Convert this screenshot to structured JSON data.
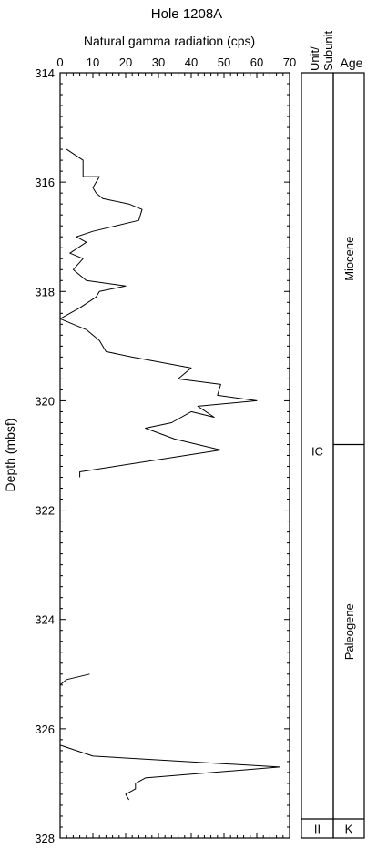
{
  "chart_data": {
    "type": "line",
    "title": "Hole 1208A",
    "xlabel": "Natural gamma radiation (cps)",
    "ylabel": "Depth (mbsf)",
    "xlim": [
      0,
      70
    ],
    "ylim": [
      314,
      328
    ],
    "y_inverted": true,
    "x_ticks": [
      "0",
      "10",
      "20",
      "30",
      "40",
      "50",
      "60",
      "70"
    ],
    "y_ticks": [
      "314",
      "316",
      "318",
      "320",
      "322",
      "324",
      "326",
      "328"
    ],
    "segments": [
      {
        "points": [
          [
            2,
            315.4
          ],
          [
            7,
            315.6
          ],
          [
            7,
            315.9
          ],
          [
            12,
            315.9
          ],
          [
            10,
            316.1
          ],
          [
            11,
            316.2
          ],
          [
            13,
            316.3
          ],
          [
            21,
            316.4
          ],
          [
            25,
            316.5
          ],
          [
            24,
            316.7
          ],
          [
            10,
            316.9
          ],
          [
            5,
            317.0
          ],
          [
            8,
            317.1
          ],
          [
            3,
            317.3
          ],
          [
            7,
            317.4
          ],
          [
            4,
            317.6
          ],
          [
            8,
            317.8
          ],
          [
            20,
            317.9
          ],
          [
            12,
            318.0
          ],
          [
            11,
            318.1
          ],
          [
            6,
            318.3
          ],
          [
            0,
            318.5
          ],
          [
            8,
            318.7
          ],
          [
            12,
            318.9
          ],
          [
            14,
            319.1
          ],
          [
            22,
            319.2
          ],
          [
            40,
            319.4
          ],
          [
            36,
            319.6
          ],
          [
            49,
            319.7
          ],
          [
            48,
            319.9
          ],
          [
            60,
            320.0
          ],
          [
            42,
            320.1
          ],
          [
            47,
            320.3
          ],
          [
            40,
            320.2
          ],
          [
            34,
            320.4
          ],
          [
            26,
            320.5
          ],
          [
            35,
            320.7
          ],
          [
            49,
            320.9
          ],
          [
            6,
            321.3
          ],
          [
            6,
            321.4
          ]
        ]
      },
      {
        "points": [
          [
            9,
            325.0
          ],
          [
            2,
            325.1
          ],
          [
            0,
            325.2
          ]
        ]
      },
      {
        "points": [
          [
            0,
            326.3
          ],
          [
            10,
            326.5
          ],
          [
            67,
            326.7
          ],
          [
            26,
            326.9
          ],
          [
            23,
            327.0
          ],
          [
            23,
            327.1
          ],
          [
            20,
            327.2
          ],
          [
            21,
            327.3
          ]
        ]
      }
    ]
  },
  "columns": {
    "unit_header": "Unit/ Subunit",
    "age_header": "Age",
    "units": [
      {
        "label": "IC",
        "top": 314,
        "bottom": 327.65
      },
      {
        "label": "II",
        "top": 327.65,
        "bottom": 328
      }
    ],
    "ages": [
      {
        "label": "Miocene",
        "top": 314,
        "bottom": 320.8,
        "rotated": true
      },
      {
        "label": "Paleogene",
        "top": 320.8,
        "bottom": 327.65,
        "rotated": true
      },
      {
        "label": "K",
        "top": 327.65,
        "bottom": 328,
        "rotated": false
      }
    ]
  }
}
